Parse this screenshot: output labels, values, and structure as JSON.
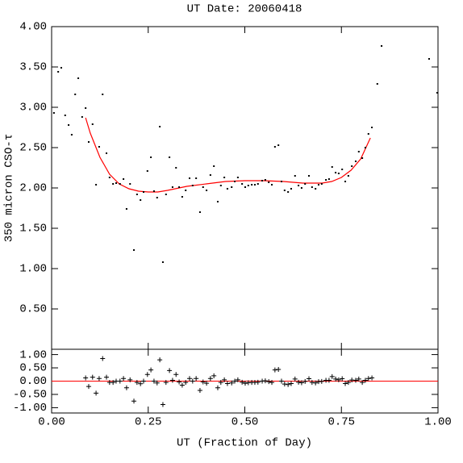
{
  "chart_data": [
    {
      "type": "scatter",
      "title": "UT Date: 20060418",
      "ylabel": "350 micron CSO-τ",
      "color": "#000000",
      "x": [
        0.006,
        0.017,
        0.025,
        0.035,
        0.044,
        0.052,
        0.061,
        0.069,
        0.079,
        0.088,
        0.096,
        0.106,
        0.115,
        0.123,
        0.132,
        0.142,
        0.15,
        0.159,
        0.167,
        0.177,
        0.186,
        0.194,
        0.203,
        0.213,
        0.221,
        0.23,
        0.238,
        0.248,
        0.257,
        0.265,
        0.273,
        0.28,
        0.288,
        0.296,
        0.305,
        0.313,
        0.322,
        0.33,
        0.338,
        0.347,
        0.357,
        0.365,
        0.374,
        0.384,
        0.392,
        0.401,
        0.411,
        0.42,
        0.43,
        0.438,
        0.447,
        0.455,
        0.466,
        0.474,
        0.482,
        0.493,
        0.501,
        0.509,
        0.518,
        0.526,
        0.534,
        0.545,
        0.553,
        0.562,
        0.57,
        0.578,
        0.587,
        0.595,
        0.603,
        0.612,
        0.62,
        0.63,
        0.639,
        0.647,
        0.656,
        0.666,
        0.674,
        0.683,
        0.691,
        0.699,
        0.71,
        0.718,
        0.726,
        0.735,
        0.743,
        0.752,
        0.76,
        0.768,
        0.777,
        0.787,
        0.795,
        0.804,
        0.812,
        0.82,
        0.829,
        0.843,
        0.854,
        0.977,
        0.998
      ],
      "values": [
        2.93,
        3.44,
        3.49,
        2.9,
        2.78,
        2.66,
        3.16,
        3.36,
        2.88,
        2.99,
        2.57,
        2.79,
        2.04,
        2.51,
        3.16,
        2.43,
        2.13,
        2.05,
        2.06,
        2.05,
        2.11,
        1.74,
        2.05,
        1.23,
        1.92,
        1.85,
        1.95,
        2.21,
        2.38,
        1.96,
        1.88,
        2.76,
        1.08,
        1.92,
        2.38,
        2.01,
        2.25,
        2.01,
        1.89,
        1.97,
        2.12,
        2.03,
        2.12,
        1.7,
        2.01,
        1.97,
        2.16,
        2.27,
        1.83,
        2.03,
        2.13,
        1.99,
        2.01,
        2.08,
        2.13,
        2.05,
        2.01,
        2.03,
        2.04,
        2.04,
        2.05,
        2.09,
        2.1,
        2.07,
        2.04,
        2.51,
        2.53,
        2.08,
        1.97,
        1.95,
        1.99,
        2.15,
        2.03,
        2.0,
        2.05,
        2.15,
        2.01,
        1.99,
        2.04,
        2.05,
        2.1,
        2.11,
        2.26,
        2.19,
        2.18,
        2.23,
        2.08,
        2.15,
        2.27,
        2.33,
        2.45,
        2.37,
        2.5,
        2.67,
        2.75,
        3.29,
        3.76,
        3.6,
        3.18
      ],
      "fit": {
        "color": "#ff0000",
        "x": [
          0.088,
          0.1,
          0.125,
          0.15,
          0.175,
          0.2,
          0.225,
          0.25,
          0.275,
          0.3,
          0.35,
          0.4,
          0.45,
          0.5,
          0.55,
          0.6,
          0.65,
          0.7,
          0.725,
          0.75,
          0.775,
          0.8,
          0.825
        ],
        "values": [
          2.87,
          2.68,
          2.38,
          2.17,
          2.05,
          1.99,
          1.96,
          1.95,
          1.95,
          1.97,
          2.02,
          2.05,
          2.08,
          2.09,
          2.09,
          2.08,
          2.06,
          2.06,
          2.08,
          2.13,
          2.22,
          2.36,
          2.62
        ]
      },
      "xlim": [
        0,
        1
      ],
      "ylim": [
        0,
        4
      ],
      "yticks": [
        {
          "value": 0.5,
          "label": "0.50"
        },
        {
          "value": 1,
          "label": "1.00"
        },
        {
          "value": 1.5,
          "label": "1.50"
        },
        {
          "value": 2,
          "label": "2.00"
        },
        {
          "value": 2.5,
          "label": "2.50"
        },
        {
          "value": 3,
          "label": "3.00"
        },
        {
          "value": 3.5,
          "label": "3.50"
        },
        {
          "value": 4,
          "label": "4.00"
        }
      ]
    },
    {
      "type": "scatter",
      "marker": "+",
      "xlabel": "UT (Fraction of Day)",
      "color": "#000000",
      "x": [
        0.088,
        0.096,
        0.106,
        0.115,
        0.123,
        0.132,
        0.142,
        0.15,
        0.159,
        0.167,
        0.177,
        0.186,
        0.194,
        0.203,
        0.213,
        0.221,
        0.23,
        0.238,
        0.248,
        0.257,
        0.265,
        0.273,
        0.28,
        0.288,
        0.296,
        0.305,
        0.313,
        0.322,
        0.33,
        0.338,
        0.347,
        0.357,
        0.365,
        0.374,
        0.384,
        0.392,
        0.401,
        0.411,
        0.42,
        0.43,
        0.438,
        0.447,
        0.455,
        0.466,
        0.474,
        0.482,
        0.493,
        0.501,
        0.509,
        0.518,
        0.526,
        0.534,
        0.545,
        0.553,
        0.562,
        0.57,
        0.578,
        0.587,
        0.595,
        0.603,
        0.612,
        0.62,
        0.63,
        0.639,
        0.647,
        0.656,
        0.666,
        0.674,
        0.683,
        0.691,
        0.699,
        0.71,
        0.718,
        0.726,
        0.735,
        0.743,
        0.752,
        0.76,
        0.768,
        0.777,
        0.787,
        0.795,
        0.804,
        0.812,
        0.82,
        0.829
      ],
      "values": [
        0.12,
        -0.2,
        0.15,
        -0.45,
        0.1,
        0.85,
        0.15,
        -0.05,
        -0.05,
        0,
        0,
        0.1,
        -0.25,
        0.05,
        -0.75,
        -0.05,
        -0.1,
        0,
        0.25,
        0.42,
        0,
        -0.07,
        0.8,
        -0.88,
        -0.05,
        0.4,
        0.03,
        0.25,
        -0.03,
        -0.15,
        -0.05,
        0.1,
        0,
        0.1,
        -0.35,
        -0.03,
        -0.08,
        0.1,
        0.2,
        -0.25,
        -0.05,
        0.05,
        -0.09,
        -0.07,
        0,
        0.05,
        -0.04,
        -0.08,
        -0.06,
        -0.05,
        -0.05,
        -0.04,
        0,
        0.01,
        -0.02,
        -0.05,
        0.42,
        0.44,
        0,
        -0.11,
        -0.13,
        -0.09,
        0.08,
        -0.04,
        -0.06,
        -0.01,
        0.09,
        -0.05,
        -0.07,
        -0.02,
        -0.01,
        0.03,
        0.03,
        0.17,
        0.08,
        0.05,
        0.09,
        -0.09,
        -0.05,
        0.04,
        0.03,
        0.08,
        -0.05,
        0.03,
        0.1,
        0.12
      ],
      "reference_line": {
        "value": 0,
        "color": "#ff0000"
      },
      "xlim": [
        0,
        1
      ],
      "ylim": [
        -1.2,
        1.2
      ],
      "xticks": [
        {
          "value": 0,
          "label": "0.00"
        },
        {
          "value": 0.25,
          "label": "0.25"
        },
        {
          "value": 0.5,
          "label": "0.50"
        },
        {
          "value": 0.75,
          "label": "0.75"
        },
        {
          "value": 1,
          "label": "1.00"
        }
      ],
      "yticks": [
        {
          "value": -1,
          "label": "-1.00"
        },
        {
          "value": -0.5,
          "label": "-0.50"
        },
        {
          "value": 0,
          "label": "0.00"
        },
        {
          "value": 0.5,
          "label": "0.50"
        },
        {
          "value": 1,
          "label": "1.00"
        }
      ]
    }
  ]
}
